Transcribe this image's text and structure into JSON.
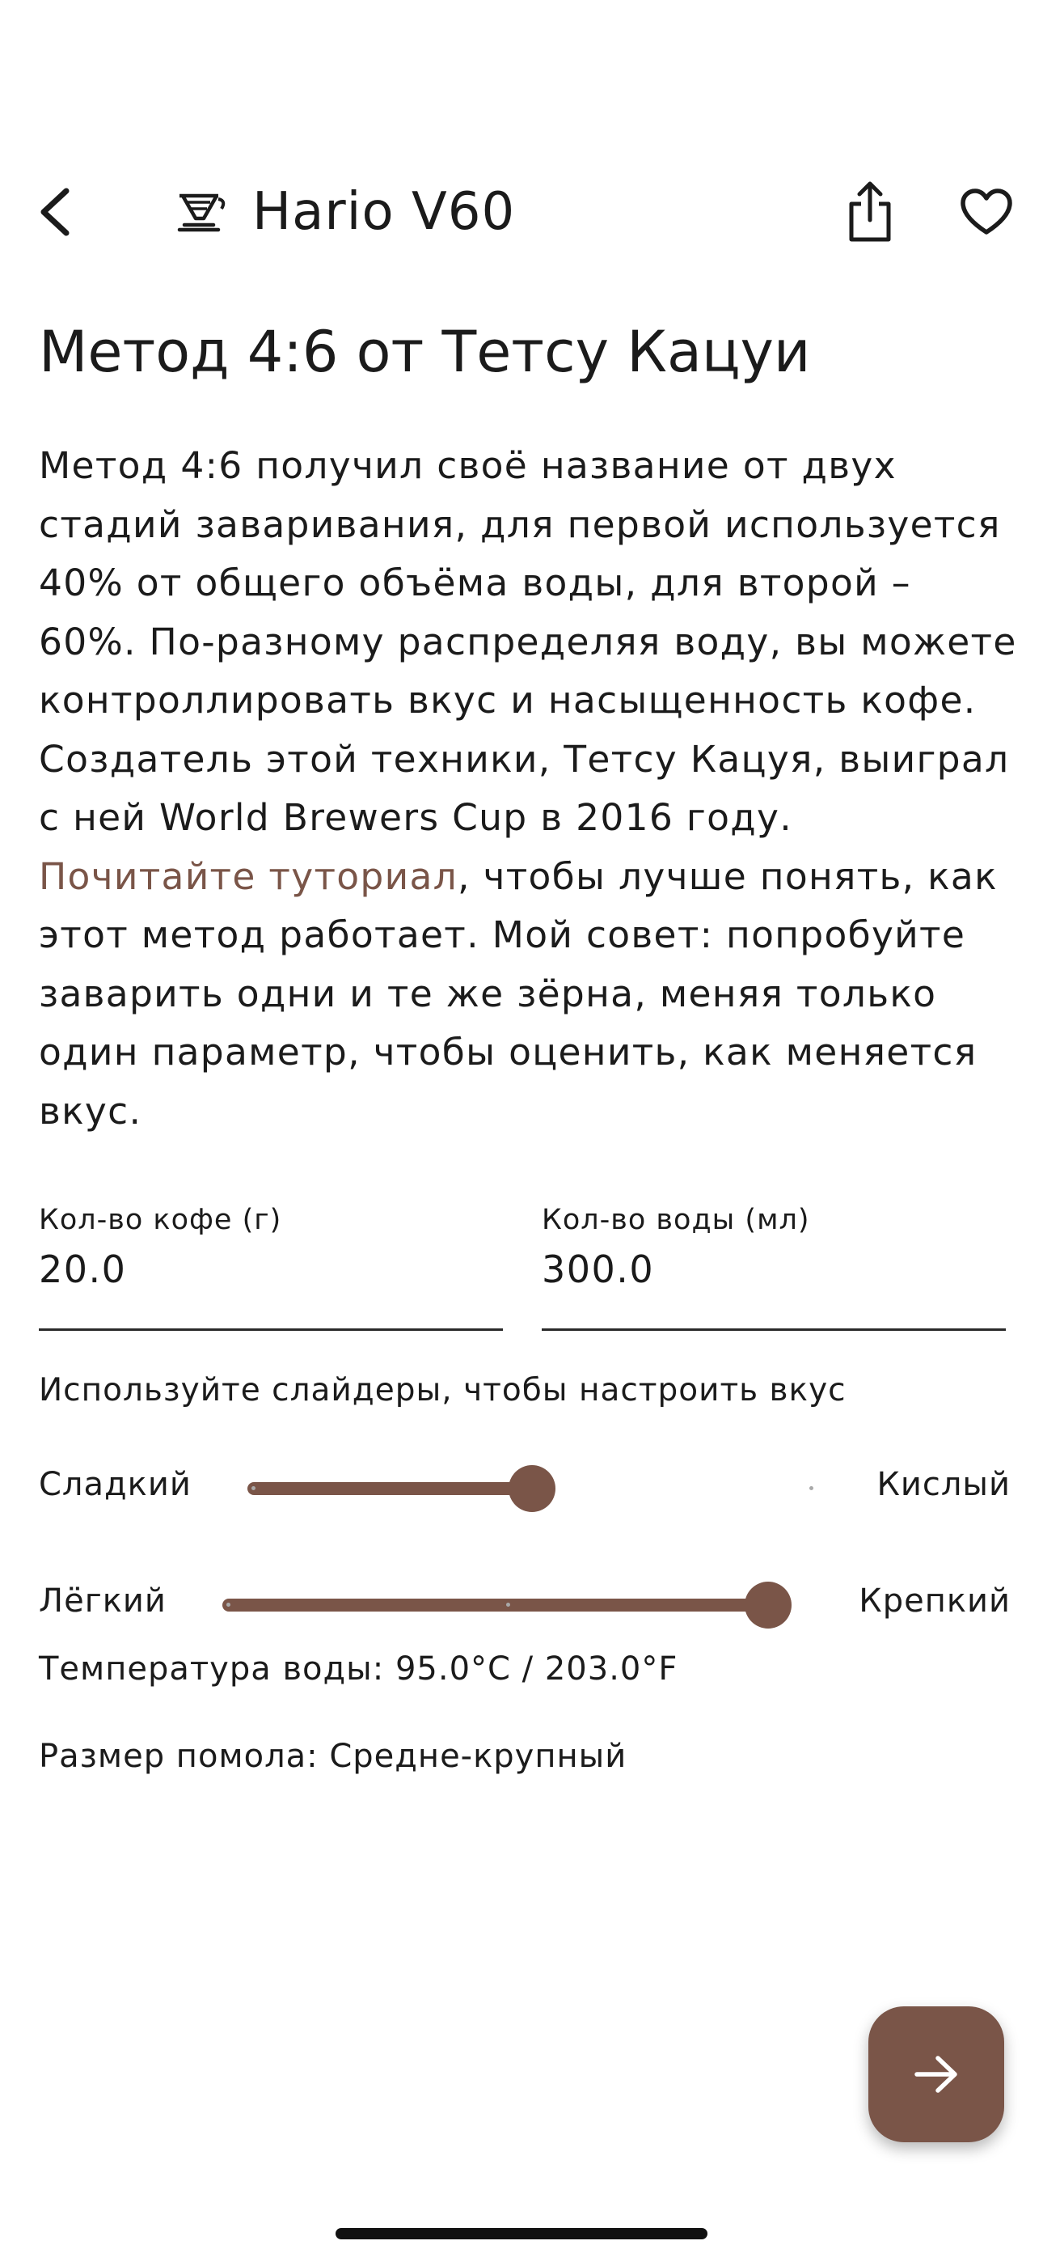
{
  "header": {
    "title": "Hario V60",
    "back_icon": "chevron-left-icon",
    "brewer_icon": "v60-dripper-icon",
    "share_icon": "share-icon",
    "favorite_icon": "heart-outline-icon"
  },
  "recipe": {
    "title": "Метод 4:6 от Тетсу Кацуи",
    "description_intro": "Метод 4:6 получил своё название от двух стадий заваривания, для первой используется 40% от общего объёма воды, для второй – 60%. По-разному распределяя воду, вы можете контроллировать вкус и насыщенность кофе. Создатель этой техники, Тетсу Кацуя, выиграл с ней World Brewers Cup в 2016 году.",
    "tutorial_link": "Почитайте туториал",
    "description_outro": ", чтобы лучше понять, как этот метод работает. Мой совет: попробуйте заварить одни и те же зёрна, меняя только один параметр, чтобы оценить, как меняется вкус."
  },
  "inputs": {
    "coffee": {
      "label": "Кол-во кофе (г)",
      "value": "20.0"
    },
    "water": {
      "label": "Кол-во воды (мл)",
      "value": "300.0"
    }
  },
  "sliders": {
    "hint": "Используйте слайдеры, чтобы настроить вкус",
    "taste": {
      "left_label": "Сладкий",
      "right_label": "Кислый",
      "value": 0.5
    },
    "strength": {
      "left_label": "Лёгкий",
      "right_label": "Крепкий",
      "value": 1.0
    }
  },
  "info": {
    "temperature": "Температура воды: 95.0°C / 203.0°F",
    "grind": "Размер помола: Средне-крупный"
  },
  "fab": {
    "icon": "arrow-right-icon"
  },
  "colors": {
    "accent": "#7a5548",
    "text": "#1b1b1b",
    "background": "#ffffff"
  }
}
